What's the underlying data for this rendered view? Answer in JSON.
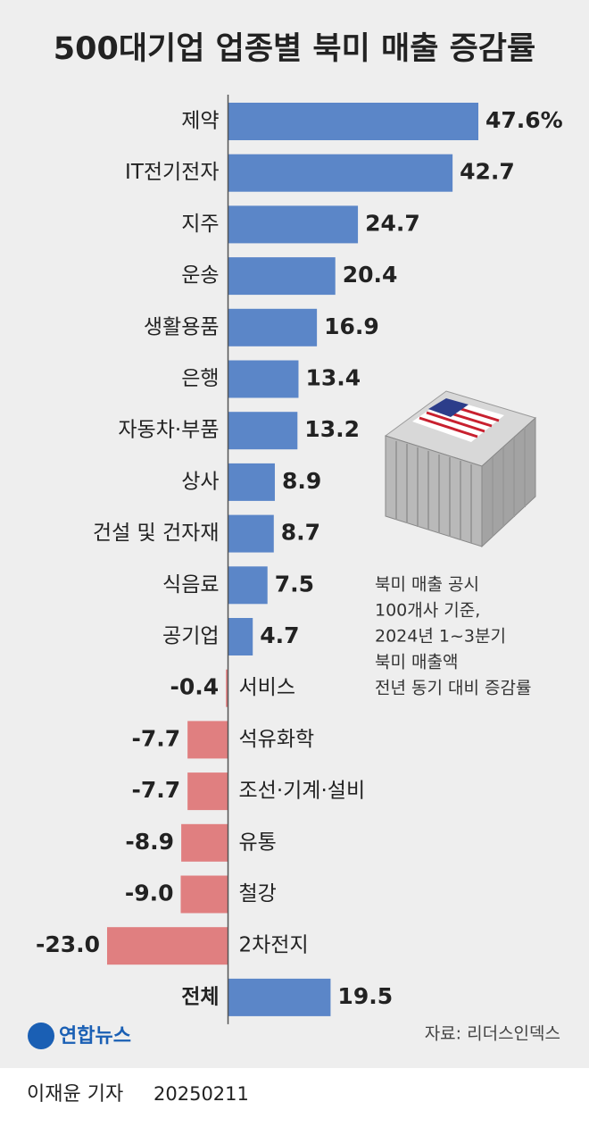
{
  "chart_data": {
    "type": "bar",
    "orientation": "horizontal",
    "title": "500대기업 업종별 북미 매출 증감률",
    "categories": [
      "제약",
      "IT전기전자",
      "지주",
      "운송",
      "생활용품",
      "은행",
      "자동차·부품",
      "상사",
      "건설 및 건자재",
      "식음료",
      "공기업",
      "서비스",
      "석유화학",
      "조선·기계·설비",
      "유통",
      "철강",
      "2차전지",
      "전체"
    ],
    "values": [
      47.6,
      42.7,
      24.7,
      20.4,
      16.9,
      13.4,
      13.2,
      8.9,
      8.7,
      7.5,
      4.7,
      -0.4,
      -7.7,
      -7.7,
      -8.9,
      -9.0,
      -23.0,
      19.5
    ],
    "value_labels": [
      "47.6%",
      "42.7",
      "24.7",
      "20.4",
      "16.9",
      "13.4",
      "13.2",
      "8.9",
      "8.7",
      "7.5",
      "4.7",
      "-0.4",
      "-7.7",
      "-7.7",
      "-8.9",
      "-9.0",
      "-23.0",
      "19.5"
    ],
    "positive_color": "#5b86c8",
    "negative_color": "#e07f80",
    "annotation": [
      "북미 매출 공시",
      "100개사 기준,",
      "2024년 1~3분기",
      "북미 매출액",
      "전년 동기 대비 증감률"
    ],
    "source": "자료: 리더스인덱스"
  },
  "logo": "연합뉴스",
  "byline": "이재윤 기자",
  "date": "20250211"
}
